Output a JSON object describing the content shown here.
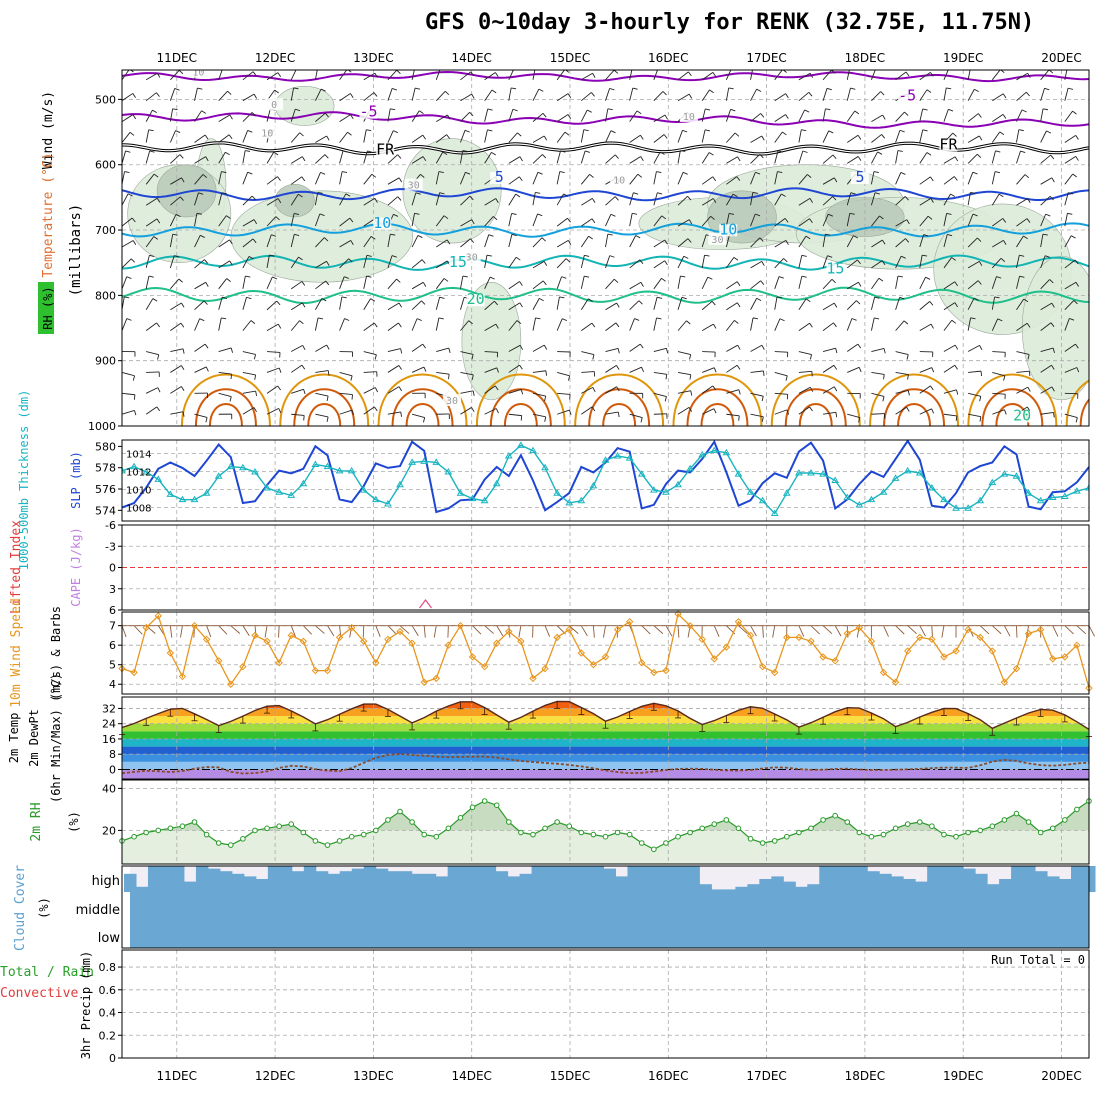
{
  "page": {
    "title": "GFS 0~10day 3-hourly for RENK (32.75E, 11.75N)"
  },
  "colors": {
    "purple": "#8a00b4",
    "black": "#000000",
    "blue": "#1e46d2",
    "ltblue": "#14a0dc",
    "teal": "#12b4b4",
    "green": "#1fbf8c",
    "orange": "#e0960a",
    "dkorange": "#d05a0a",
    "slp": "#1e46d2",
    "thick": "#18b4c0",
    "wind": "#e8961e",
    "rh": "#2a9a2a",
    "cloud": "#6aa7d2",
    "cloudbg": "#f2eef6",
    "rhfill": "#dcebd8",
    "rhdark": "#b8c9b8",
    "grid": "#aaaaaa",
    "li": "#e03c3c",
    "cape": "#c080e0"
  },
  "chart_data": {
    "type": "meteogram",
    "time_axis": {
      "day_labels": [
        "11DEC",
        "12DEC",
        "13DEC",
        "14DEC",
        "15DEC",
        "16DEC",
        "17DEC",
        "18DEC",
        "19DEC",
        "20DEC"
      ],
      "steps": 81,
      "step_hours": 3
    },
    "panels": {
      "upper_air": {
        "ylabel_parts": [
          "RH (%)",
          "Temperature (°C)",
          "Wind (m/s)"
        ],
        "ylabel_unit": "(millibars)",
        "ytick_labels": [
          "500",
          "600",
          "700",
          "800",
          "900",
          "1000"
        ],
        "ylim_mb": [
          455,
          1000
        ],
        "isotherms": [
          {
            "level_mb": 465,
            "label": "",
            "color": "purple"
          },
          {
            "level_mb": 525,
            "label": "-5",
            "color": "purple"
          },
          {
            "level_mb": 575,
            "label": "FR",
            "color": "black"
          },
          {
            "level_mb": 645,
            "label": "5",
            "color": "blue"
          },
          {
            "level_mb": 700,
            "label": "10",
            "color": "ltblue"
          },
          {
            "level_mb": 750,
            "label": "15",
            "color": "teal"
          },
          {
            "level_mb": 800,
            "label": "20",
            "color": "green"
          }
        ],
        "contour_labels": [
          {
            "text": "10",
            "t": 0.22,
            "p_mb": 462,
            "color": "grid"
          },
          {
            "text": "0",
            "t": 0.99,
            "p_mb": 512,
            "color": "grid"
          },
          {
            "text": "10",
            "t": 0.92,
            "p_mb": 555,
            "color": "grid"
          },
          {
            "text": "-5",
            "t": 1.95,
            "p_mb": 525,
            "color": "purple"
          },
          {
            "text": "-5",
            "t": 7.43,
            "p_mb": 500,
            "color": "purple"
          },
          {
            "text": "10",
            "t": 5.21,
            "p_mb": 530,
            "color": "grid"
          },
          {
            "text": "FR",
            "t": 2.12,
            "p_mb": 583,
            "color": "black"
          },
          {
            "text": "FR",
            "t": 7.85,
            "p_mb": 575,
            "color": "black"
          },
          {
            "text": "30",
            "t": 2.41,
            "p_mb": 635,
            "color": "grid"
          },
          {
            "text": "10",
            "t": 4.5,
            "p_mb": 627,
            "color": "grid"
          },
          {
            "text": "5",
            "t": 3.28,
            "p_mb": 625,
            "color": "blue"
          },
          {
            "text": "5",
            "t": 6.95,
            "p_mb": 625,
            "color": "blue"
          },
          {
            "text": "10",
            "t": 2.09,
            "p_mb": 695,
            "color": "ltblue"
          },
          {
            "text": "30",
            "t": 3.0,
            "p_mb": 745,
            "color": "grid"
          },
          {
            "text": "30",
            "t": 5.5,
            "p_mb": 718,
            "color": "grid"
          },
          {
            "text": "10",
            "t": 5.61,
            "p_mb": 705,
            "color": "ltblue"
          },
          {
            "text": "15",
            "t": 2.86,
            "p_mb": 755,
            "color": "teal"
          },
          {
            "text": "15",
            "t": 6.7,
            "p_mb": 765,
            "color": "teal"
          },
          {
            "text": "20",
            "t": 3.04,
            "p_mb": 812,
            "color": "green"
          },
          {
            "text": "20",
            "t": 8.6,
            "p_mb": 990,
            "color": "green"
          },
          {
            "text": "30",
            "t": 2.8,
            "p_mb": 965,
            "color": "grid"
          }
        ]
      },
      "slp_thickness": {
        "ylabel_left": "1000-500mb Thickness (dm)",
        "ylabel_right": "SLP (mb)",
        "left_ticks": [
          "574",
          "576",
          "578",
          "580"
        ],
        "right_ticks": [
          "1008",
          "1010",
          "1012",
          "1014"
        ],
        "slp_range": [
          1006.5,
          1015.5
        ],
        "thick_range": [
          573,
          580.6
        ],
        "slp_mb": [
          1008.0,
          1008.5,
          1010.2,
          1012.3,
          1013.0,
          1012.4,
          1011.5,
          1013.2,
          1015.0,
          1013.6,
          1008.5,
          1008.7,
          1010.5,
          1012.1,
          1011.8,
          1012.3,
          1014.8,
          1013.8,
          1008.9,
          1008.6,
          1010.4,
          1012.9,
          1012.4,
          1012.6,
          1015.3,
          1014.3,
          1007.5,
          1007.9,
          1008.8,
          1008.9,
          1011.1,
          1012.5,
          1011.5,
          1013.8,
          1011.0,
          1007.7,
          1008.6,
          1009.6,
          1012.5,
          1011.9,
          1013.0,
          1014.6,
          1014.2,
          1007.9,
          1008.3,
          1010.6,
          1012.1,
          1011.9,
          1013.4,
          1015.3,
          1011.9,
          1008.2,
          1008.8,
          1010.7,
          1011.8,
          1011.3,
          1014.2,
          1015.2,
          1013.2,
          1007.9,
          1008.9,
          1010.6,
          1012.0,
          1011.4,
          1013.4,
          1015.4,
          1013.3,
          1008.2,
          1008.0,
          1009.6,
          1011.9,
          1012.6,
          1013.0,
          1014.8,
          1013.9,
          1008.1,
          1007.8,
          1009.7,
          1009.8,
          1010.8,
          1012.5
        ],
        "thickness_dm": [
          577.7,
          578.1,
          577.6,
          576.9,
          575.5,
          575.0,
          575.0,
          575.6,
          577.2,
          578.1,
          578.0,
          577.6,
          576.1,
          575.7,
          575.4,
          576.5,
          578.3,
          578.1,
          577.7,
          577.7,
          575.9,
          575.0,
          574.6,
          576.4,
          578.5,
          578.6,
          578.5,
          577.6,
          575.6,
          575.1,
          574.9,
          576.5,
          579.1,
          580.1,
          579.6,
          578.0,
          575.6,
          574.7,
          574.9,
          576.3,
          578.7,
          579.1,
          578.9,
          577.4,
          575.9,
          575.7,
          576.4,
          577.9,
          579.2,
          579.6,
          579.4,
          577.4,
          575.7,
          574.9,
          573.7,
          575.6,
          577.5,
          577.5,
          577.4,
          576.8,
          575.2,
          574.5,
          575.0,
          575.7,
          577.0,
          577.7,
          577.5,
          576.1,
          575.0,
          574.2,
          574.2,
          574.9,
          576.6,
          577.4,
          577.2,
          575.6,
          574.9,
          575.2,
          575.3,
          575.8,
          576.1
        ]
      },
      "lifted_cape": {
        "ylabel_left": "Lifted Index",
        "ylabel_right": "CAPE (J/kg)",
        "ticks": [
          "-6",
          "-3",
          "0",
          "3",
          "6"
        ],
        "cape_spike_time": 3.0,
        "lifted_index_zero_line": 0
      },
      "wind10m": {
        "ylabel_left": "10m Wind Speed",
        "ylabel_right": "(m/s) & Barbs",
        "ticks": [
          "4",
          "5",
          "6",
          "7"
        ],
        "ylim": [
          3.5,
          7.7
        ],
        "speed_ms": [
          4.8,
          4.6,
          6.9,
          7.5,
          5.6,
          4.4,
          7.0,
          6.3,
          5.2,
          4.0,
          4.9,
          6.5,
          6.2,
          5.1,
          6.5,
          6.2,
          4.7,
          4.7,
          6.4,
          6.9,
          6.2,
          5.1,
          6.3,
          6.7,
          6.1,
          4.1,
          4.3,
          6.0,
          7.0,
          5.4,
          4.9,
          6.1,
          6.7,
          6.2,
          4.3,
          4.8,
          6.4,
          6.8,
          5.6,
          5.0,
          5.4,
          6.8,
          7.2,
          5.1,
          4.6,
          4.7,
          7.6,
          7.0,
          6.3,
          5.3,
          5.9,
          7.2,
          6.5,
          4.9,
          4.6,
          6.4,
          6.4,
          6.2,
          5.4,
          5.2,
          6.6,
          6.9,
          6.2,
          4.6,
          4.1,
          5.7,
          6.4,
          6.3,
          5.4,
          5.7,
          6.8,
          6.4,
          5.7,
          4.1,
          4.8,
          6.6,
          6.8,
          5.3,
          5.4,
          6.0,
          3.8
        ]
      },
      "temp2m": {
        "ylabel": [
          "2m Temp",
          "2m DewPt",
          "(6hr Min/Max) (°C)"
        ],
        "ticks": [
          "0",
          "8",
          "16",
          "24",
          "32"
        ],
        "ylim": [
          -5,
          38
        ],
        "temp_c": [
          22.0,
          24.1,
          26.8,
          29.3,
          31.6,
          32.0,
          29.2,
          26.2,
          23.0,
          25.2,
          28.0,
          30.9,
          33.2,
          33.5,
          30.7,
          27.5,
          23.9,
          26.1,
          29.0,
          31.8,
          34.3,
          34.3,
          31.5,
          28.0,
          24.4,
          27.2,
          30.6,
          33.3,
          35.5,
          35.5,
          32.5,
          28.6,
          24.8,
          27.3,
          30.6,
          33.6,
          35.7,
          35.6,
          32.5,
          29.3,
          25.3,
          27.5,
          30.4,
          33.1,
          34.7,
          33.4,
          30.7,
          26.8,
          23.6,
          25.6,
          28.3,
          31.0,
          32.9,
          32.1,
          29.1,
          26.0,
          22.2,
          24.5,
          27.4,
          30.3,
          32.4,
          32.2,
          29.6,
          26.6,
          22.5,
          24.7,
          27.5,
          30.0,
          32.0,
          31.9,
          29.3,
          26.1,
          21.6,
          24.3,
          27.0,
          29.6,
          31.5,
          31.1,
          28.6,
          25.0,
          21.0
        ],
        "dewpoint_c": [
          -2.0,
          -1.3,
          -0.7,
          -0.9,
          -1.4,
          -0.8,
          0.4,
          1.3,
          1.1,
          -1.3,
          -2.1,
          -1.9,
          -1.0,
          0.8,
          1.9,
          1.6,
          0.2,
          -0.6,
          -0.9,
          0.7,
          3.5,
          6.1,
          7.6,
          8.1,
          7.6,
          7.2,
          6.7,
          6.5,
          6.6,
          6.7,
          6.7,
          6.3,
          5.3,
          4.5,
          3.9,
          3.4,
          3.0,
          2.4,
          1.6,
          0.6,
          -0.5,
          -1.4,
          -1.9,
          -1.8,
          -1.1,
          -0.3,
          0.3,
          0.4,
          0.3,
          -0.1,
          -0.5,
          -0.6,
          -0.3,
          0.5,
          1.1,
          0.9,
          0.2,
          -0.2,
          -0.1,
          0.3,
          0.4,
          0.0,
          -0.3,
          -0.3,
          -0.1,
          0.1,
          0.3,
          0.7,
          1.0,
          0.9,
          0.8,
          2.2,
          4.1,
          5.0,
          4.5,
          3.2,
          2.3,
          2.0,
          2.4,
          3.2,
          3.6
        ]
      },
      "rh2m": {
        "ylabel": "2m RH",
        "ylabel_unit": "(%)",
        "ticks": [
          "20",
          "40"
        ],
        "ylim": [
          4,
          44
        ],
        "rh_pct": [
          15,
          17,
          19,
          20,
          21,
          22,
          24,
          18,
          14,
          13,
          16,
          20,
          21,
          22,
          23,
          19,
          15,
          13,
          15,
          17,
          18,
          20,
          25,
          29,
          24,
          18,
          17,
          21,
          26,
          31,
          34,
          32,
          24,
          19,
          18,
          21,
          24,
          22,
          19,
          18,
          17,
          19,
          18,
          14,
          11,
          14,
          17,
          19,
          21,
          23,
          25,
          21,
          16,
          14,
          15,
          17,
          19,
          21,
          25,
          27,
          24,
          19,
          17,
          18,
          21,
          23,
          24,
          22,
          18,
          17,
          19,
          20,
          22,
          25,
          28,
          24,
          19,
          21,
          25,
          30,
          34
        ]
      },
      "cloud_cover": {
        "ylabel": "Cloud Cover",
        "ylabel_unit": "(%)",
        "level_labels": [
          "high",
          "middle",
          "low"
        ],
        "high_pct": [
          70,
          20,
          100,
          100,
          100,
          40,
          100,
          90,
          80,
          70,
          60,
          50,
          100,
          100,
          80,
          100,
          80,
          70,
          80,
          90,
          100,
          90,
          80,
          80,
          70,
          70,
          60,
          100,
          100,
          100,
          100,
          80,
          60,
          70,
          100,
          100,
          100,
          100,
          100,
          100,
          90,
          60,
          100,
          100,
          100,
          100,
          100,
          100,
          30,
          10,
          10,
          20,
          30,
          50,
          60,
          40,
          20,
          30,
          100,
          100,
          100,
          100,
          80,
          70,
          60,
          50,
          40,
          100,
          100,
          100,
          90,
          70,
          30,
          50,
          100,
          100,
          80,
          60,
          50,
          100,
          100
        ],
        "middle_pct": 100,
        "low_pct": 100
      },
      "precip": {
        "ylabel_left": "Total / Rain",
        "ylabel_left2": "Convective",
        "ylabel_right": "3hr Precip (mm)",
        "ticks": [
          "0",
          "0.2",
          "0.4",
          "0.6",
          "0.8"
        ],
        "ylim": [
          0,
          0.95
        ],
        "run_total": "Run Total = 0",
        "values_mm": []
      }
    }
  }
}
